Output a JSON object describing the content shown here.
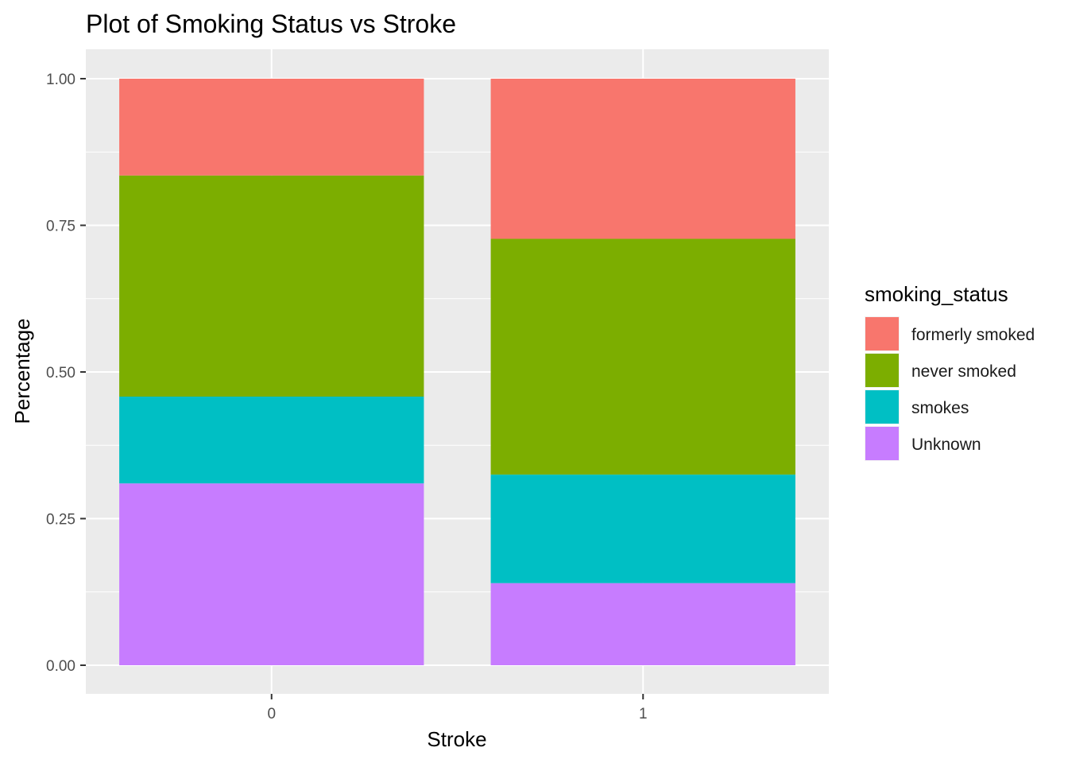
{
  "chart_data": {
    "type": "bar",
    "stacked": true,
    "title": "Plot of Smoking Status vs Stroke",
    "xlabel": "Stroke",
    "ylabel": "Percentage",
    "categories": [
      "0",
      "1"
    ],
    "ylim": [
      0,
      1
    ],
    "yticks": [
      "0.00",
      "0.25",
      "0.50",
      "0.75",
      "1.00"
    ],
    "grid": true,
    "legend": {
      "title": "smoking_status",
      "position": "right"
    },
    "series": [
      {
        "name": "Unknown",
        "color": "#C77CFF",
        "values": [
          0.31,
          0.14
        ]
      },
      {
        "name": "smokes",
        "color": "#00BFC4",
        "values": [
          0.148,
          0.185
        ]
      },
      {
        "name": "never smoked",
        "color": "#7CAE00",
        "values": [
          0.377,
          0.402
        ]
      },
      {
        "name": "formerly smoked",
        "color": "#F8766D",
        "values": [
          0.165,
          0.273
        ]
      }
    ],
    "legend_order": [
      "formerly smoked",
      "never smoked",
      "smokes",
      "Unknown"
    ]
  }
}
